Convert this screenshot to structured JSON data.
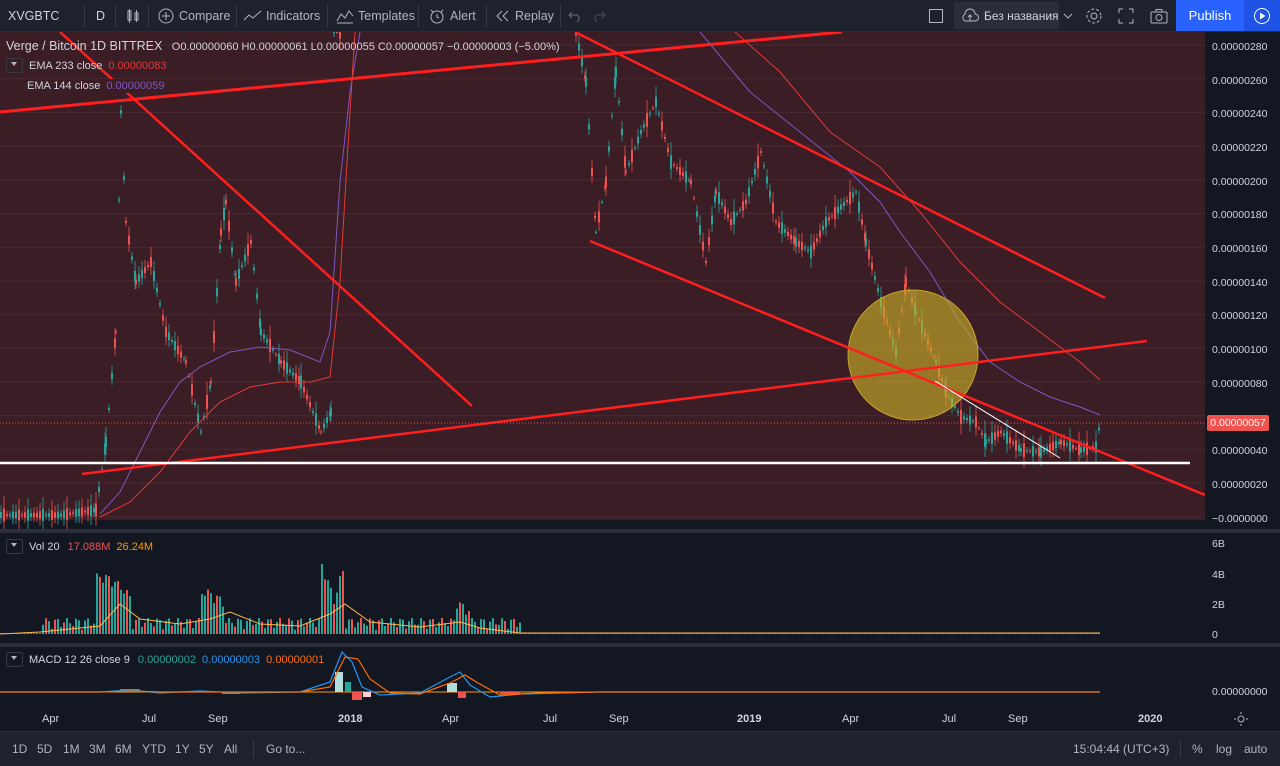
{
  "toolbar": {
    "symbol": "XVGBTC",
    "interval": "D",
    "compare": "Compare",
    "indicators": "Indicators",
    "templates": "Templates",
    "alert": "Alert",
    "replay": "Replay",
    "layout_name": "Без названия",
    "publish": "Publish"
  },
  "legend": {
    "title": "Verge / Bitcoin  1D  BITTREX",
    "ohlc": "O0.00000060 H0.00000061 L0.00000055 C0.00000057 −0.00000003 (−5.00%)",
    "ema233_label": "EMA 233 close",
    "ema233_value": "0.00000083",
    "ema144_label": "EMA 144 close",
    "ema144_value": "0.00000059"
  },
  "price_axis": {
    "labels": [
      "0.00000280",
      "0.00000260",
      "0.00000240",
      "0.00000220",
      "0.00000200",
      "0.00000180",
      "0.00000160",
      "0.00000140",
      "0.00000120",
      "0.00000100",
      "0.00000080",
      "0.00000040",
      "0.00000020",
      "−0.0000000"
    ],
    "last_price": "0.00000057"
  },
  "volume": {
    "label": "Vol 20",
    "value1": "17.088M",
    "value2": "26.24M",
    "axis": [
      "6B",
      "4B",
      "2B",
      "0"
    ]
  },
  "macd": {
    "label": "MACD 12 26 close 9",
    "v1": "0.00000002",
    "v2": "0.00000003",
    "v3": "0.00000001",
    "axis": "0.00000000"
  },
  "time_axis": [
    "Apr",
    "Jul",
    "Sep",
    "2018",
    "Apr",
    "Jul",
    "Sep",
    "2019",
    "Apr",
    "Jul",
    "Sep",
    "2020"
  ],
  "bottom": {
    "ranges": [
      "1D",
      "5D",
      "1M",
      "3M",
      "6M",
      "YTD",
      "1Y",
      "5Y",
      "All"
    ],
    "goto": "Go to...",
    "clock": "15:04:44 (UTC+3)",
    "percent": "%",
    "log": "log",
    "auto": "auto"
  },
  "colors": {
    "background": "#131722",
    "chart_zone": "#3a1d25",
    "up": "#26a69a",
    "down": "#ef5350",
    "trendline": "#ff1f1f",
    "ema233": "#e53935",
    "ema144": "#7e57c2",
    "accent": "#2962ff"
  }
}
